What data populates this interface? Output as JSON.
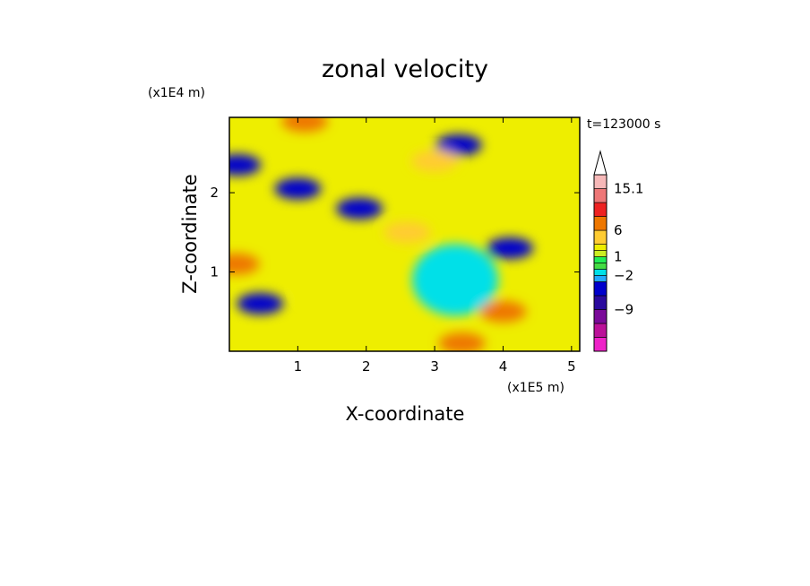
{
  "chart_data": {
    "type": "heatmap",
    "title": "zonal velocity",
    "xlabel": "X-coordinate",
    "ylabel": "Z-coordinate",
    "x_unit": "(x1E5 m)",
    "y_unit": "(x1E4 m)",
    "time_label": "t=123000 s",
    "xlim": [
      0,
      5.12
    ],
    "ylim": [
      0,
      2.95
    ],
    "x_ticks": [
      {
        "value": 1,
        "label": "1"
      },
      {
        "value": 2,
        "label": "2"
      },
      {
        "value": 3,
        "label": "3"
      },
      {
        "value": 4,
        "label": "4"
      },
      {
        "value": 5,
        "label": "5"
      }
    ],
    "y_ticks": [
      {
        "value": 1,
        "label": "1"
      },
      {
        "value": 2,
        "label": "2"
      }
    ],
    "colorbar": {
      "levels": [
        -15,
        -12,
        -9,
        -6,
        -3,
        -2,
        -1,
        0,
        1,
        2,
        3,
        6,
        9,
        12,
        15.1
      ],
      "colors": [
        "#ee22c8",
        "#bb1199",
        "#7a0a99",
        "#2a0a9e",
        "#0000cc",
        "#22aaff",
        "#00e0e8",
        "#44dd44",
        "#22ee55",
        "#ccee22",
        "#eeee00",
        "#ffcc33",
        "#ee7700",
        "#ee2222",
        "#ee7777",
        "#f6b8b8"
      ],
      "labels": [
        {
          "value": 15.1,
          "label": "15.1"
        },
        {
          "value": 6,
          "label": "6"
        },
        {
          "value": 1,
          "label": "1"
        },
        {
          "value": -2,
          "label": "−2"
        },
        {
          "value": -9,
          "label": "−9"
        }
      ],
      "extend_max": true
    },
    "field_features": [
      {
        "x": 3.35,
        "z": 2.6,
        "value": -6
      },
      {
        "x": 4.1,
        "z": 1.3,
        "value": -6
      },
      {
        "x": 0.12,
        "z": 2.35,
        "value": -6
      },
      {
        "x": 0.45,
        "z": 0.6,
        "value": -6
      },
      {
        "x": 1.9,
        "z": 1.8,
        "value": -6
      },
      {
        "x": 1.0,
        "z": 2.05,
        "value": -6
      },
      {
        "x": 3.3,
        "z": 0.9,
        "value": -2
      },
      {
        "x": 3.4,
        "z": 0.1,
        "value": 6
      },
      {
        "x": 4.0,
        "z": 0.5,
        "value": 6
      },
      {
        "x": 0.1,
        "z": 1.1,
        "value": 6
      },
      {
        "x": 1.1,
        "z": 2.9,
        "value": 6
      },
      {
        "x": 3.0,
        "z": 2.4,
        "value": 3
      },
      {
        "x": 2.6,
        "z": 1.5,
        "value": 3
      },
      {
        "x": 1.6,
        "z": 0.9,
        "value": 2
      }
    ]
  }
}
